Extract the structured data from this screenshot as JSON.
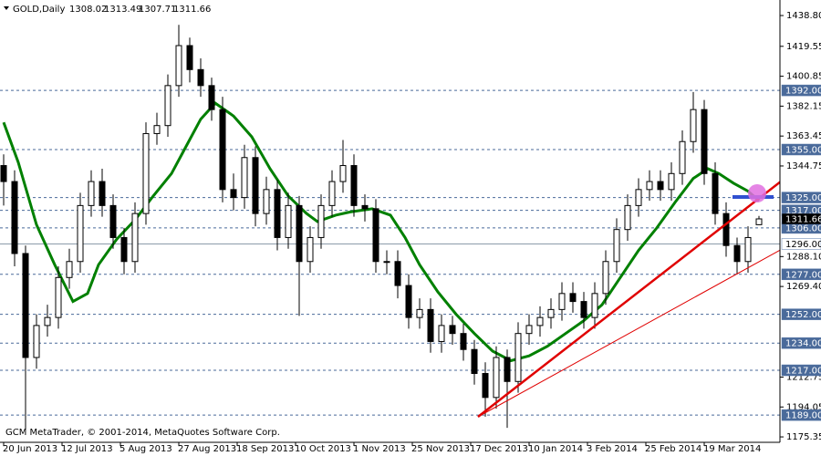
{
  "chart_data": {
    "type": "candlestick",
    "header": {
      "symbol": "GOLD,Daily",
      "open": 1308.02,
      "high": 1313.49,
      "low": 1307.71,
      "close": 1311.66
    },
    "footer": "GCM MetaTrader, © 2001-2014, MetaQuotes Software Corp.",
    "xlim": [
      -1,
      212.75
    ],
    "ylim": [
      1173.1,
      1446.8
    ],
    "xticks": [
      {
        "value": 0,
        "label": "20 Jun 2013"
      },
      {
        "value": 16,
        "label": "12 Jul 2013"
      },
      {
        "value": 32,
        "label": "5 Aug 2013"
      },
      {
        "value": 48,
        "label": "27 Aug 2013"
      },
      {
        "value": 64,
        "label": "18 Sep 2013"
      },
      {
        "value": 80,
        "label": "10 Oct 2013"
      },
      {
        "value": 96,
        "label": "1 Nov 2013"
      },
      {
        "value": 112,
        "label": "25 Nov 2013"
      },
      {
        "value": 128,
        "label": "17 Dec 2013"
      },
      {
        "value": 144,
        "label": "10 Jan 2014"
      },
      {
        "value": 160,
        "label": "3 Feb 2014"
      },
      {
        "value": 176,
        "label": "25 Feb 2014"
      },
      {
        "value": 192,
        "label": "19 Mar 2014"
      }
    ],
    "yticks": [
      {
        "value": 1438.8,
        "label": "1438.80"
      },
      1419.55,
      1400.85,
      1382.15,
      1363.45,
      1344.75,
      {
        "value": 1288.1,
        "label": "1288.10"
      },
      {
        "value": 1269.4,
        "label": "1269.40"
      },
      1212.75,
      1194.05,
      1175.35
    ],
    "x": [
      0,
      3,
      6,
      9,
      12,
      15,
      18,
      21,
      24,
      27,
      30,
      33,
      36,
      39,
      42,
      45,
      48,
      51,
      54,
      57,
      60,
      63,
      66,
      69,
      72,
      75,
      78,
      81,
      84,
      87,
      90,
      93,
      96,
      99,
      102,
      105,
      108,
      111,
      114,
      117,
      120,
      123,
      126,
      129,
      132,
      135,
      138,
      141,
      144,
      147,
      150,
      153,
      156,
      159,
      162,
      165,
      168,
      171,
      174,
      177,
      180,
      183,
      186,
      189,
      192,
      195,
      198,
      201,
      204,
      207
    ],
    "open": [
      1345,
      1335,
      1290,
      1225,
      1245,
      1250,
      1275,
      1285,
      1320,
      1335,
      1320,
      1300,
      1285,
      1315,
      1365,
      1370,
      1395,
      1420,
      1405,
      1395,
      1380,
      1330,
      1325,
      1350,
      1315,
      1330,
      1300,
      1320,
      1285,
      1300,
      1320,
      1335,
      1345,
      1320,
      1318,
      1285,
      1285,
      1270,
      1250,
      1255,
      1235,
      1245,
      1240,
      1230,
      1215,
      1200,
      1225,
      1210,
      1240,
      1245,
      1250,
      1255,
      1265,
      1260,
      1250,
      1265,
      1285,
      1305,
      1320,
      1330,
      1335,
      1330,
      1340,
      1360,
      1380,
      1340,
      1315,
      1295,
      1285,
      1308.02
    ],
    "high": [
      1352,
      1342,
      1295,
      1252,
      1258,
      1282,
      1293,
      1328,
      1342,
      1343,
      1327,
      1306,
      1322,
      1372,
      1378,
      1402,
      1433,
      1425,
      1412,
      1400,
      1388,
      1340,
      1358,
      1357,
      1338,
      1336,
      1328,
      1326,
      1307,
      1327,
      1342,
      1361,
      1352,
      1327,
      1324,
      1292,
      1292,
      1277,
      1262,
      1262,
      1252,
      1251,
      1246,
      1236,
      1222,
      1232,
      1230,
      1247,
      1252,
      1257,
      1262,
      1272,
      1272,
      1266,
      1272,
      1292,
      1312,
      1327,
      1337,
      1342,
      1342,
      1347,
      1367,
      1391,
      1386,
      1347,
      1322,
      1300,
      1307,
      1313.49
    ],
    "low": [
      1320,
      1282,
      1180,
      1218,
      1238,
      1243,
      1268,
      1278,
      1313,
      1313,
      1293,
      1277,
      1278,
      1308,
      1358,
      1363,
      1388,
      1397,
      1388,
      1373,
      1322,
      1317,
      1318,
      1307,
      1308,
      1292,
      1293,
      1251,
      1278,
      1293,
      1313,
      1328,
      1313,
      1310,
      1278,
      1277,
      1262,
      1243,
      1243,
      1228,
      1228,
      1233,
      1223,
      1208,
      1188,
      1193,
      1181,
      1203,
      1233,
      1238,
      1243,
      1248,
      1253,
      1243,
      1243,
      1258,
      1278,
      1298,
      1313,
      1323,
      1323,
      1323,
      1333,
      1353,
      1333,
      1308,
      1288,
      1277,
      1278,
      1307.71
    ],
    "close": [
      1335,
      1290,
      1225,
      1245,
      1250,
      1275,
      1285,
      1320,
      1335,
      1320,
      1300,
      1285,
      1315,
      1365,
      1370,
      1395,
      1420,
      1405,
      1395,
      1380,
      1330,
      1325,
      1350,
      1315,
      1330,
      1300,
      1320,
      1285,
      1300,
      1320,
      1335,
      1345,
      1320,
      1318,
      1285,
      1285,
      1270,
      1250,
      1255,
      1235,
      1245,
      1240,
      1230,
      1215,
      1200,
      1225,
      1210,
      1240,
      1245,
      1250,
      1255,
      1265,
      1260,
      1250,
      1265,
      1285,
      1305,
      1320,
      1330,
      1335,
      1330,
      1340,
      1360,
      1380,
      1340,
      1315,
      1295,
      1285,
      1300,
      1311.66
    ],
    "moving_average": {
      "color": "#008000",
      "x": [
        0,
        4,
        9,
        14,
        19,
        23,
        26,
        31,
        36,
        41,
        46,
        50,
        54,
        58,
        63,
        68,
        73,
        78,
        83,
        86,
        91,
        95,
        101,
        106,
        110,
        114,
        119,
        124,
        129,
        134,
        139,
        144,
        149,
        154,
        159,
        164,
        169,
        174,
        179,
        184,
        189,
        193,
        196,
        200,
        204,
        207
      ],
      "values": [
        1372,
        1347,
        1308,
        1283,
        1260,
        1265,
        1283,
        1299,
        1311,
        1326,
        1340,
        1357,
        1374,
        1384,
        1376,
        1363,
        1343,
        1326,
        1315,
        1310,
        1314,
        1316,
        1318,
        1314,
        1300,
        1283,
        1266,
        1252,
        1240,
        1229,
        1223,
        1226,
        1232,
        1240,
        1248,
        1258,
        1275,
        1292,
        1306,
        1322,
        1337,
        1343,
        1340,
        1334,
        1329,
        1323
      ]
    },
    "levels": [
      {
        "value": 1392,
        "label": "1392.00"
      },
      {
        "value": 1355,
        "label": "1355.00"
      },
      {
        "value": 1325,
        "label": "1325.00"
      },
      {
        "value": 1317,
        "label": "1317.00"
      },
      {
        "value": 1306,
        "label": "1306.00"
      },
      {
        "value": 1277,
        "label": "1277.00"
      },
      {
        "value": 1252,
        "label": "1252.00"
      },
      {
        "value": 1234,
        "label": "1234.00"
      },
      {
        "value": 1217,
        "label": "1217.00"
      },
      {
        "value": 1189,
        "label": "1189.00"
      }
    ],
    "reference_line": {
      "value": 1296,
      "label": "1296.00"
    },
    "last_price": 1311.66
  }
}
